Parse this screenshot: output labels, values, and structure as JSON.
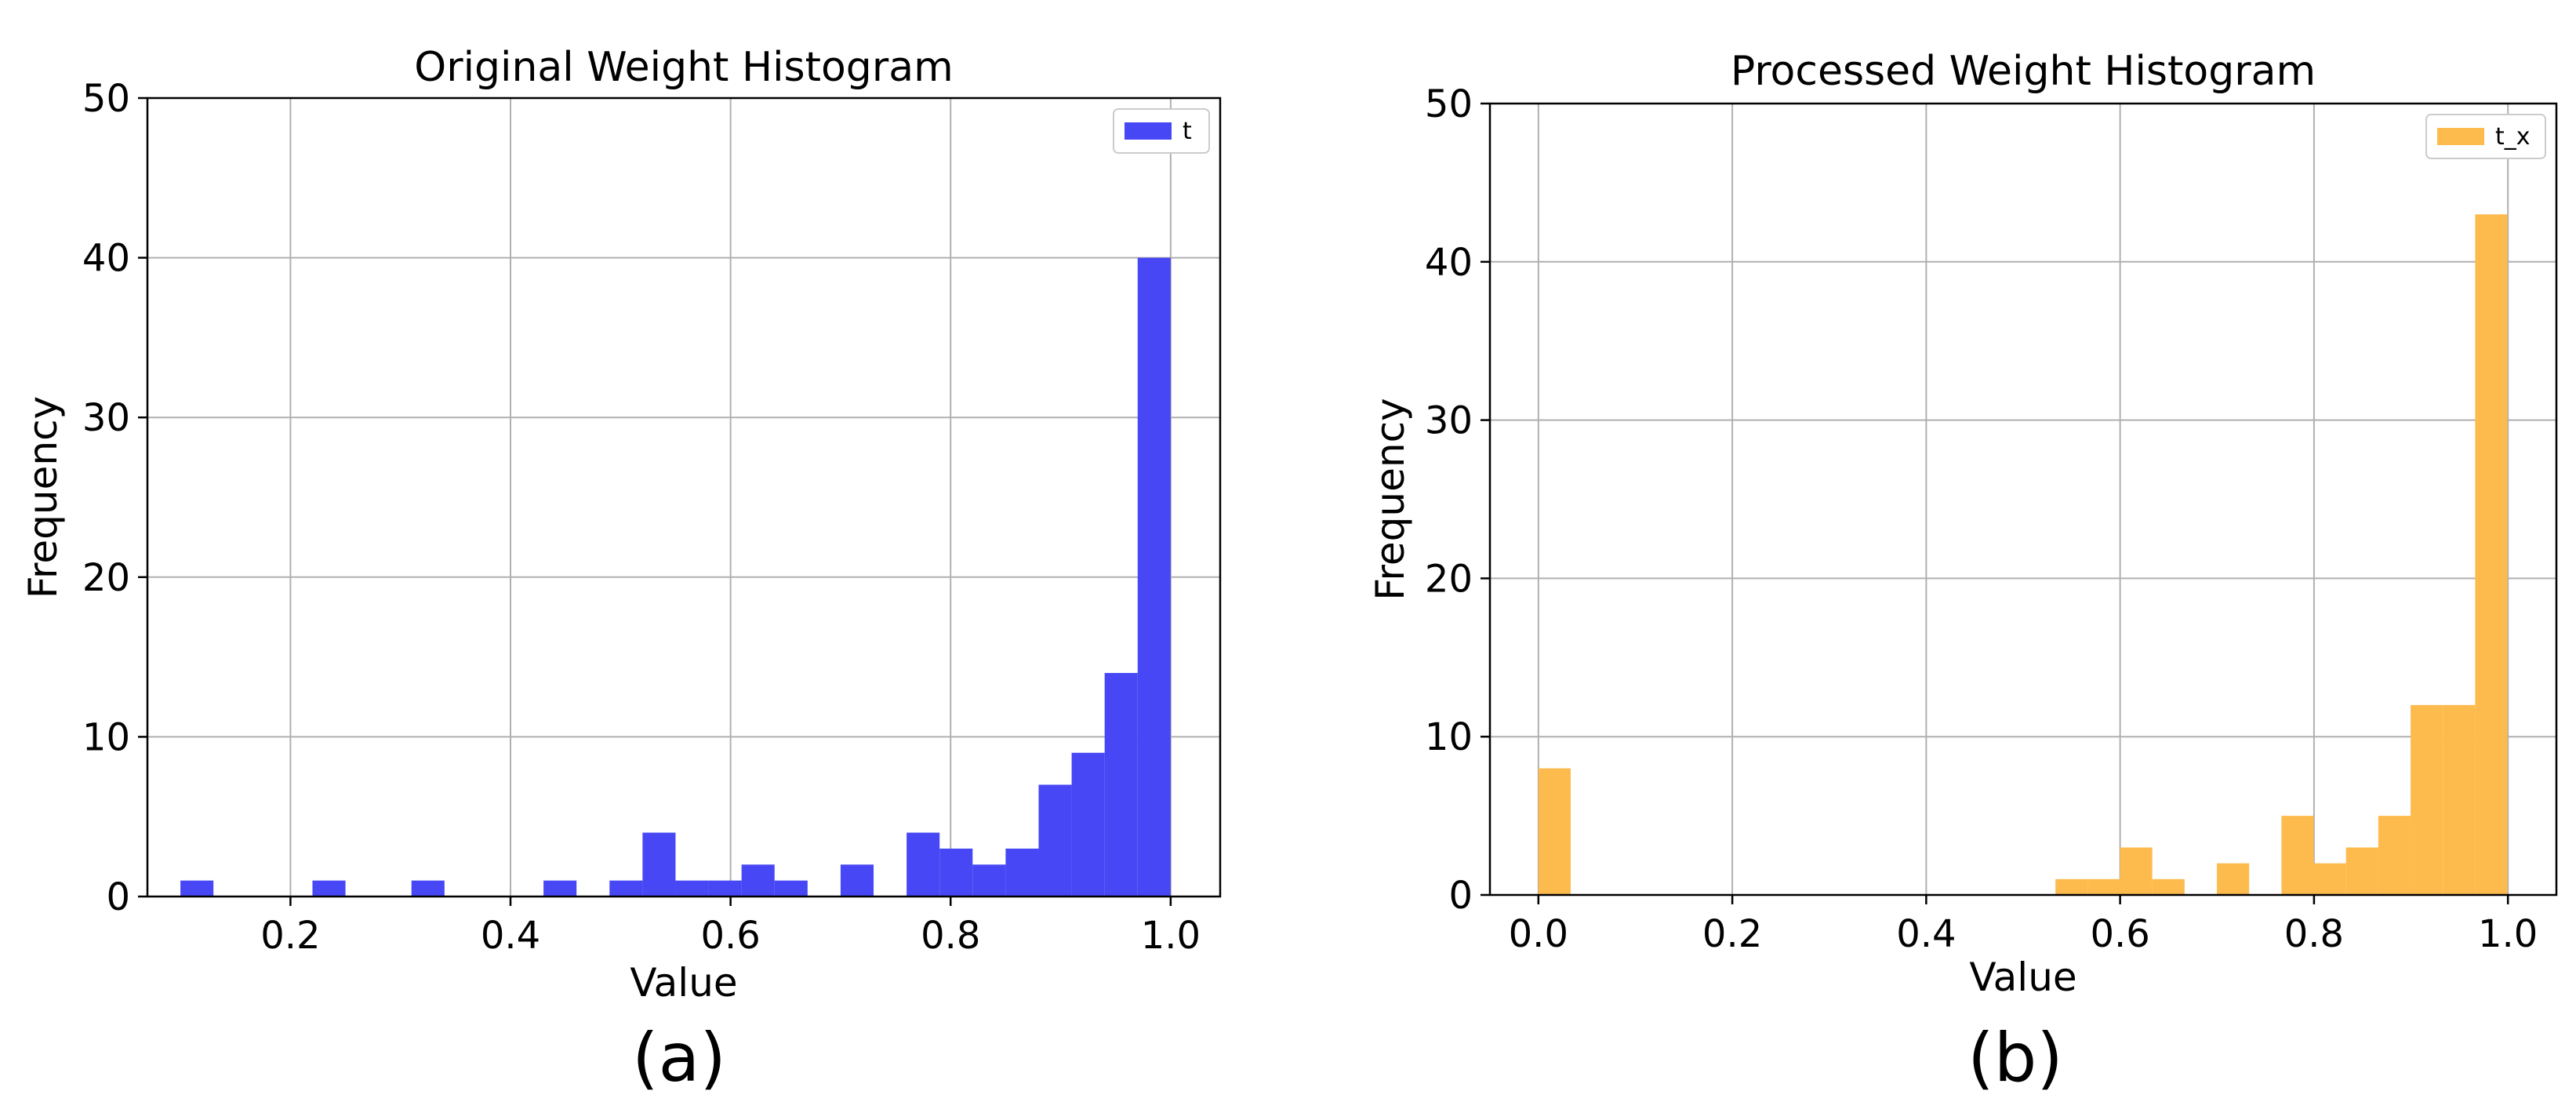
{
  "chart_data": [
    {
      "type": "bar",
      "title": "Original Weight Histogram",
      "xlabel": "Value",
      "ylabel": "Frequency",
      "panel_label": "(a)",
      "color": "#4747f5",
      "legend": {
        "label": "t",
        "position": "top-right"
      },
      "xlim": [
        0.07,
        1.045
      ],
      "ylim": [
        0,
        50
      ],
      "x_ticks": [
        0.2,
        0.4,
        0.6,
        0.8,
        1.0
      ],
      "x_tick_labels": [
        "0.2",
        "0.4",
        "0.6",
        "0.8",
        "1.0"
      ],
      "y_ticks": [
        0,
        10,
        20,
        30,
        40,
        50
      ],
      "y_tick_labels": [
        "0",
        "10",
        "20",
        "30",
        "40",
        "50"
      ],
      "grid": true,
      "bin_width": 0.03,
      "bin_starts": [
        0.1,
        0.22,
        0.31,
        0.43,
        0.49,
        0.52,
        0.55,
        0.58,
        0.61,
        0.64,
        0.7,
        0.76,
        0.79,
        0.82,
        0.85,
        0.88,
        0.91,
        0.94,
        0.97
      ],
      "values": [
        1,
        1,
        1,
        1,
        1,
        4,
        1,
        1,
        2,
        1,
        2,
        4,
        3,
        2,
        3,
        7,
        9,
        14,
        40
      ]
    },
    {
      "type": "bar",
      "title": "Processed Weight Histogram",
      "xlabel": "Value",
      "ylabel": "Frequency",
      "panel_label": "(b)",
      "color": "#fdbb4e",
      "legend": {
        "label": "t_x",
        "position": "top-right"
      },
      "xlim": [
        -0.05,
        1.05
      ],
      "ylim": [
        0,
        50
      ],
      "x_ticks": [
        0.0,
        0.2,
        0.4,
        0.6,
        0.8,
        1.0
      ],
      "x_tick_labels": [
        "0.0",
        "0.2",
        "0.4",
        "0.6",
        "0.8",
        "1.0"
      ],
      "y_ticks": [
        0,
        10,
        20,
        30,
        40,
        50
      ],
      "y_tick_labels": [
        "0",
        "10",
        "20",
        "30",
        "40",
        "50"
      ],
      "grid": true,
      "bin_width": 0.0333,
      "bin_starts": [
        0.0,
        0.5333,
        0.5666,
        0.5999,
        0.6332,
        0.6998,
        0.7664,
        0.7997,
        0.833,
        0.8663,
        0.8996,
        0.9329,
        0.9662
      ],
      "values": [
        8,
        1,
        1,
        3,
        1,
        2,
        5,
        2,
        3,
        5,
        12,
        12,
        43
      ]
    }
  ]
}
